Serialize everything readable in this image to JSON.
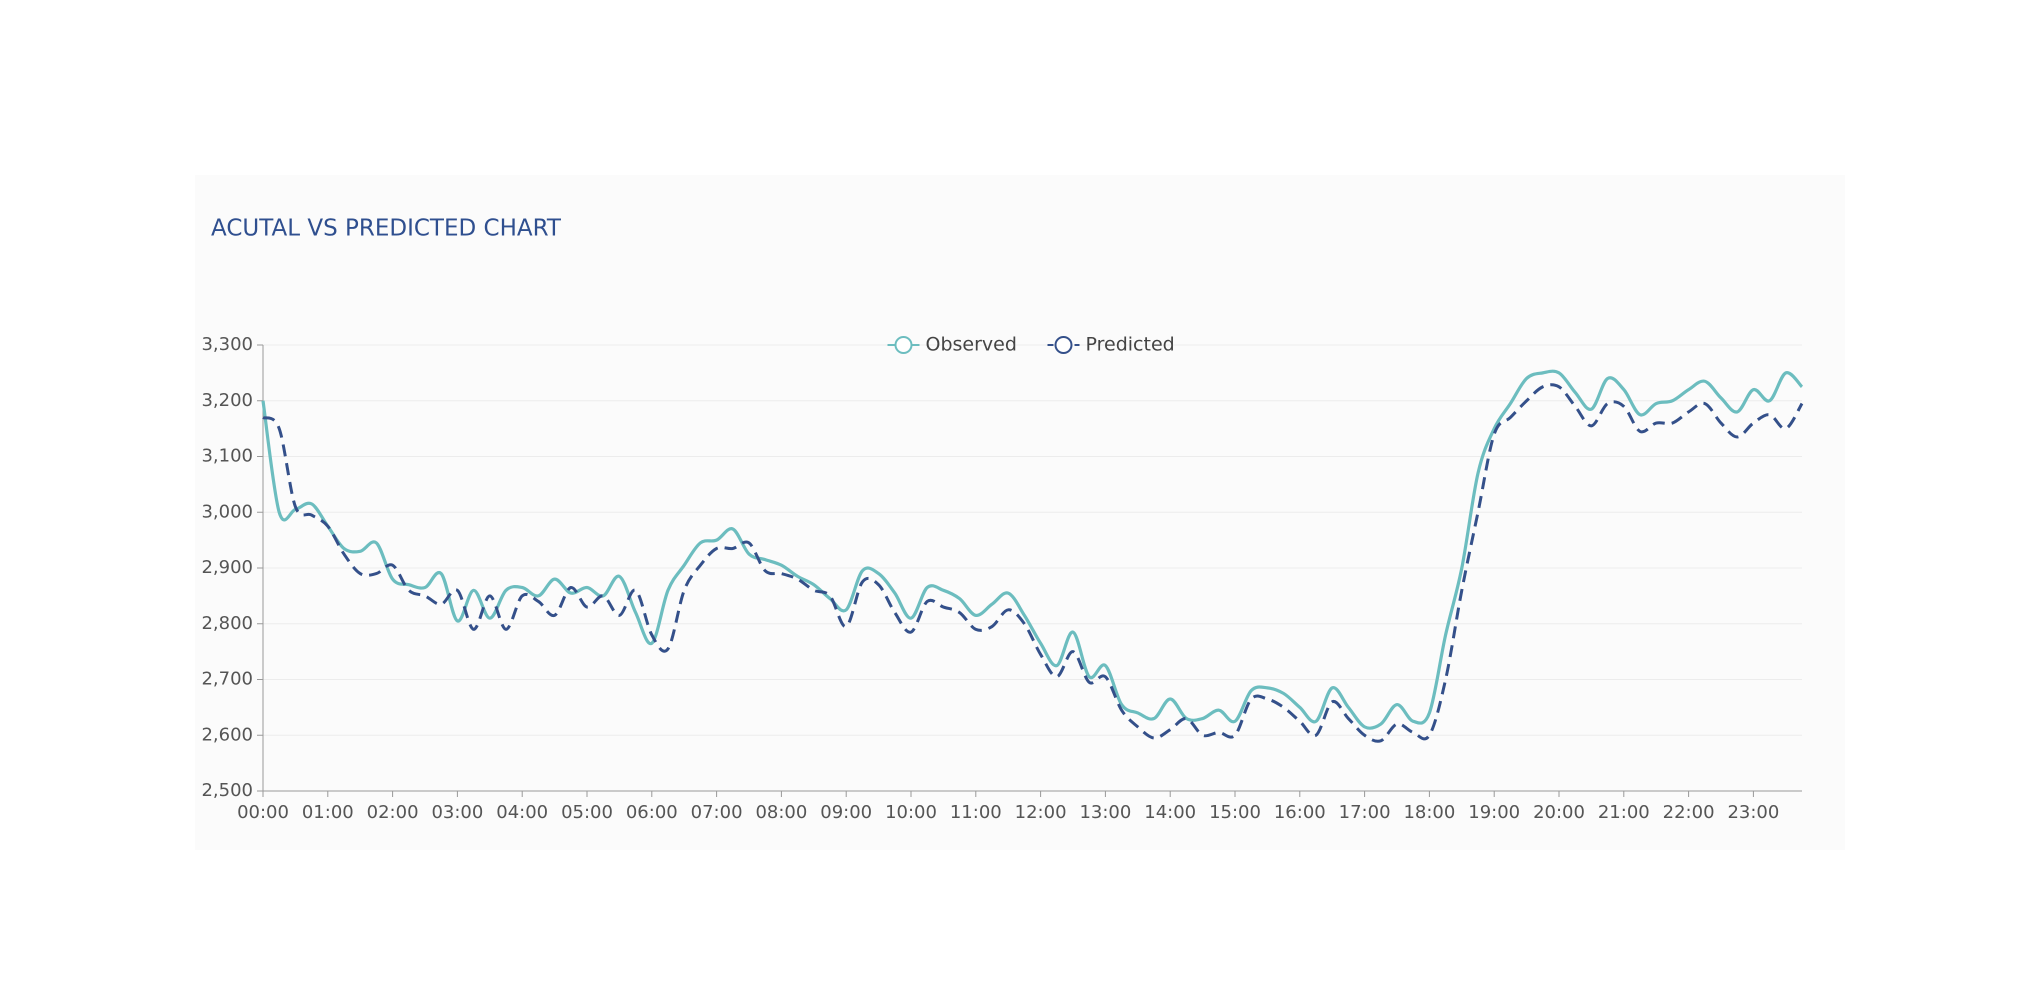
{
  "chart_data": {
    "type": "line",
    "title": "ACUTAL VS PREDICTED CHART",
    "categories": [
      "00:00",
      null,
      null,
      null,
      "01:00",
      null,
      null,
      null,
      "02:00",
      null,
      null,
      null,
      "03:00",
      null,
      null,
      null,
      "04:00",
      null,
      null,
      null,
      "05:00",
      null,
      null,
      null,
      "06:00",
      null,
      null,
      null,
      "07:00",
      null,
      null,
      null,
      "08:00",
      null,
      null,
      null,
      "09:00",
      null,
      null,
      null,
      "10:00",
      null,
      null,
      null,
      "11:00",
      null,
      null,
      null,
      "12:00",
      null,
      null,
      null,
      "13:00",
      null,
      null,
      null,
      "14:00",
      null,
      null,
      null,
      "15:00",
      null,
      null,
      null,
      "16:00",
      null,
      null,
      null,
      "17:00",
      null,
      null,
      null,
      "18:00",
      null,
      null,
      null,
      "19:00",
      null,
      null,
      null,
      "20:00",
      null,
      null,
      null,
      "21:00",
      null,
      null,
      null,
      "22:00",
      null,
      null,
      null,
      "23:00",
      null,
      null,
      null
    ],
    "series": [
      {
        "name": "Observed",
        "color": "#6cbdbf",
        "dashed": false,
        "values": [
          3200,
          3000,
          3005,
          3015,
          2975,
          2935,
          2930,
          2945,
          2880,
          2870,
          2865,
          2890,
          2805,
          2860,
          2810,
          2860,
          2865,
          2850,
          2880,
          2855,
          2865,
          2850,
          2885,
          2820,
          2765,
          2860,
          2905,
          2945,
          2950,
          2970,
          2925,
          2915,
          2905,
          2885,
          2870,
          2845,
          2825,
          2895,
          2890,
          2855,
          2810,
          2865,
          2860,
          2845,
          2815,
          2835,
          2855,
          2815,
          2765,
          2725,
          2785,
          2705,
          2725,
          2655,
          2640,
          2630,
          2665,
          2630,
          2630,
          2645,
          2625,
          2680,
          2685,
          2675,
          2650,
          2625,
          2685,
          2650,
          2615,
          2620,
          2655,
          2625,
          2640,
          2780,
          2900,
          3070,
          3150,
          3195,
          3240,
          3250,
          3250,
          3215,
          3185,
          3240,
          3220,
          3175,
          3195,
          3200,
          3220,
          3235,
          3205,
          3180,
          3220,
          3200,
          3250,
          3225
        ]
      },
      {
        "name": "Predicted",
        "color": "#34508a",
        "dashed": true,
        "values": [
          3170,
          3150,
          3010,
          2995,
          2975,
          2925,
          2890,
          2890,
          2905,
          2860,
          2850,
          2835,
          2860,
          2790,
          2850,
          2790,
          2850,
          2840,
          2815,
          2865,
          2830,
          2850,
          2815,
          2860,
          2780,
          2755,
          2860,
          2905,
          2935,
          2935,
          2945,
          2895,
          2890,
          2880,
          2860,
          2850,
          2795,
          2875,
          2870,
          2820,
          2785,
          2840,
          2830,
          2820,
          2790,
          2795,
          2825,
          2800,
          2745,
          2705,
          2750,
          2695,
          2705,
          2645,
          2615,
          2595,
          2610,
          2630,
          2600,
          2605,
          2600,
          2665,
          2665,
          2650,
          2625,
          2600,
          2660,
          2630,
          2600,
          2590,
          2620,
          2605,
          2600,
          2700,
          2860,
          3000,
          3140,
          3170,
          3200,
          3225,
          3225,
          3190,
          3155,
          3195,
          3190,
          3145,
          3160,
          3160,
          3180,
          3195,
          3160,
          3135,
          3160,
          3175,
          3150,
          3195
        ]
      }
    ],
    "ylim": [
      2500,
      3300
    ],
    "yticks": [
      {
        "value": 2500,
        "label": "2,500"
      },
      {
        "value": 2600,
        "label": "2,600"
      },
      {
        "value": 2700,
        "label": "2,700"
      },
      {
        "value": 2800,
        "label": "2,800"
      },
      {
        "value": 2900,
        "label": "2,900"
      },
      {
        "value": 3000,
        "label": "3,000"
      },
      {
        "value": 3100,
        "label": "3,100"
      },
      {
        "value": 3200,
        "label": "3,200"
      },
      {
        "value": 3300,
        "label": "3,300"
      }
    ],
    "grid": true,
    "legend": "top"
  }
}
